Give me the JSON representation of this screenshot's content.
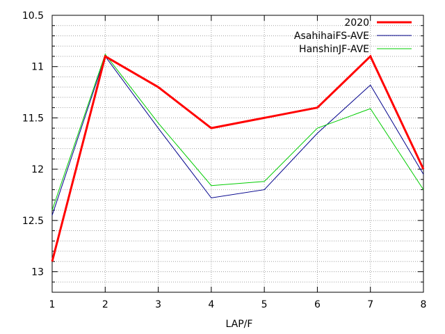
{
  "chart_data": {
    "type": "line",
    "title": "",
    "xlabel": "LAP/F",
    "ylabel": "",
    "x": [
      1,
      2,
      3,
      4,
      5,
      6,
      7,
      8
    ],
    "x_ticks": [
      "1",
      "2",
      "3",
      "4",
      "5",
      "6",
      "7",
      "8"
    ],
    "y_ticks": [
      "10.5",
      "11",
      "11.5",
      "12",
      "12.5",
      "13"
    ],
    "y_tick_values": [
      10.5,
      11,
      11.5,
      12,
      12.5,
      13
    ],
    "xlim": [
      1,
      8
    ],
    "ylim": [
      10.5,
      13.2
    ],
    "y_inverted": true,
    "grid": true,
    "legend_position": "top-right",
    "series": [
      {
        "name": "2020",
        "color": "#ff0000",
        "line_style": "thick",
        "values": [
          12.9,
          10.9,
          11.2,
          11.6,
          11.5,
          11.4,
          10.9,
          12.0
        ]
      },
      {
        "name": "AsahihaiFS-AVE",
        "color": "#00008b",
        "line_style": "thin",
        "values": [
          12.45,
          10.9,
          11.6,
          12.28,
          12.2,
          11.65,
          11.18,
          12.05
        ]
      },
      {
        "name": "HanshinJF-AVE",
        "color": "#00cc00",
        "line_style": "thin",
        "values": [
          12.4,
          10.88,
          11.55,
          12.16,
          12.12,
          11.6,
          11.41,
          12.2
        ]
      }
    ]
  }
}
